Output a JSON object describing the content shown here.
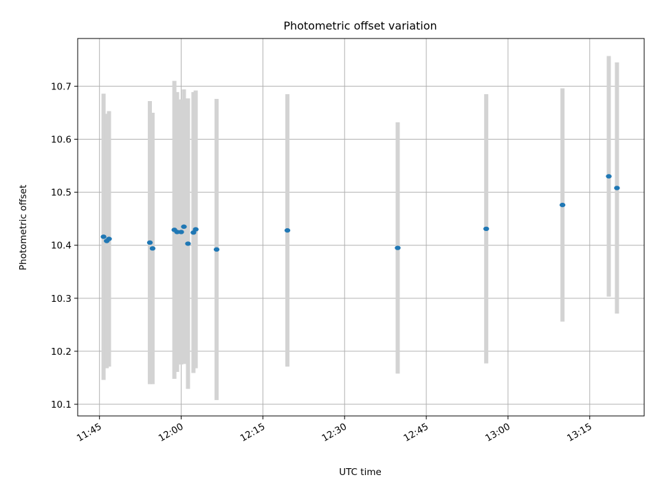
{
  "chart_data": {
    "type": "scatter",
    "title": "Photometric offset variation",
    "xlabel": "UTC time",
    "ylabel": "Photometric offset",
    "x_range": [
      "11:41",
      "13:25"
    ],
    "ylim": [
      10.078,
      10.79
    ],
    "grid": true,
    "x_ticks": [
      "11:45",
      "12:00",
      "12:15",
      "12:30",
      "12:45",
      "13:00",
      "13:15"
    ],
    "y_ticks": [
      "10.1",
      "10.2",
      "10.3",
      "10.4",
      "10.5",
      "10.6",
      "10.7"
    ],
    "series": [
      {
        "marker_color": "#1f77b4",
        "errorbar_color": "#d3d3d3",
        "points": [
          {
            "x": "11:45:45",
            "y": 10.416,
            "yerr": 0.27
          },
          {
            "x": "11:46:20",
            "y": 10.408,
            "yerr": 0.24
          },
          {
            "x": "11:46:45",
            "y": 10.412,
            "yerr": 0.241
          },
          {
            "x": "11:54:15",
            "y": 10.405,
            "yerr": 0.267
          },
          {
            "x": "11:54:45",
            "y": 10.394,
            "yerr": 0.256
          },
          {
            "x": "11:58:45",
            "y": 10.429,
            "yerr": 0.281
          },
          {
            "x": "11:59:15",
            "y": 10.425,
            "yerr": 0.264
          },
          {
            "x": "12:00:00",
            "y": 10.425,
            "yerr": 0.25
          },
          {
            "x": "12:00:30",
            "y": 10.435,
            "yerr": 0.259
          },
          {
            "x": "12:01:15",
            "y": 10.403,
            "yerr": 0.274
          },
          {
            "x": "12:02:15",
            "y": 10.424,
            "yerr": 0.265
          },
          {
            "x": "12:02:40",
            "y": 10.43,
            "yerr": 0.262
          },
          {
            "x": "12:06:30",
            "y": 10.392,
            "yerr": 0.284
          },
          {
            "x": "12:19:30",
            "y": 10.428,
            "yerr": 0.257
          },
          {
            "x": "12:39:45",
            "y": 10.395,
            "yerr": 0.237
          },
          {
            "x": "12:56:00",
            "y": 10.431,
            "yerr": 0.254
          },
          {
            "x": "13:10:00",
            "y": 10.476,
            "yerr": 0.22
          },
          {
            "x": "13:18:30",
            "y": 10.53,
            "yerr": 0.227
          },
          {
            "x": "13:20:00",
            "y": 10.508,
            "yerr": 0.237
          }
        ]
      }
    ]
  }
}
